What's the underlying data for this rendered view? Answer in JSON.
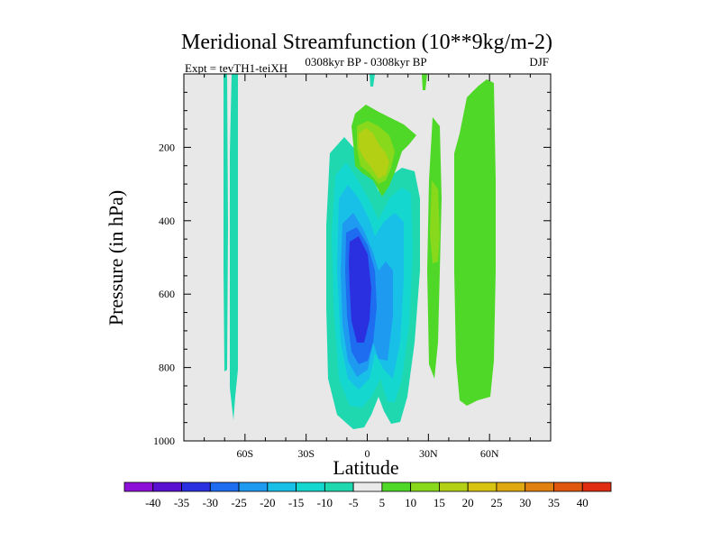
{
  "chart_data": {
    "type": "contour",
    "title": "Meridional Streamfunction (10**9kg/m-2)",
    "subtitle_left": "Expt = tevTH1-teiXH",
    "subtitle_center": "0308kyr BP - 0308kyr BP",
    "subtitle_right": "DJF",
    "xlabel": "Latitude",
    "ylabel": "Pressure (in hPa)",
    "xlim": [
      -90,
      90
    ],
    "ylim": [
      1000,
      0
    ],
    "x_ticks": [
      {
        "value": -60,
        "label": "60S"
      },
      {
        "value": -30,
        "label": "30S"
      },
      {
        "value": 0,
        "label": "0"
      },
      {
        "value": 30,
        "label": "30N"
      },
      {
        "value": 60,
        "label": "60N"
      }
    ],
    "y_ticks": [
      {
        "value": 200,
        "label": "200"
      },
      {
        "value": 400,
        "label": "400"
      },
      {
        "value": 600,
        "label": "600"
      },
      {
        "value": 800,
        "label": "800"
      },
      {
        "value": 1000,
        "label": "1000"
      }
    ],
    "levels": [
      -40,
      -35,
      -30,
      -25,
      -20,
      -15,
      -10,
      -5,
      5,
      10,
      15,
      20,
      25,
      30,
      35,
      40
    ],
    "colorbar_colors": [
      "#8d10d8",
      "#5a10d0",
      "#2a30e0",
      "#1e6cf0",
      "#1e9af0",
      "#18c0e8",
      "#14d8d0",
      "#20d8b0",
      "#eaeaea",
      "#50d828",
      "#88d81c",
      "#b4d014",
      "#d8c410",
      "#e0a810",
      "#e08010",
      "#e05810",
      "#e02c10"
    ],
    "features": [
      {
        "name": "cell-sh-high-lat",
        "lon": [
          -64.5,
          -60
        ],
        "p_top": 0,
        "p_bottom": 940,
        "value": -7
      },
      {
        "name": "cell-sh-high-lat-narrow",
        "lon": [
          -68,
          -66
        ],
        "p_top": 0,
        "p_bottom": 810,
        "value": -7
      },
      {
        "name": "hadley-sh-outer",
        "lat_range": [
          -18,
          25
        ],
        "p_top": 170,
        "p_bottom": 975,
        "value": -12
      },
      {
        "name": "hadley-sh-core",
        "lat_range": [
          -9,
          2
        ],
        "p_top": 420,
        "p_bottom": 780,
        "value": -33
      },
      {
        "name": "upper-positive-cell",
        "lat_range": [
          -5,
          25
        ],
        "p_top": 110,
        "p_bottom": 330,
        "value": 12
      },
      {
        "name": "nh-subtropical-cell",
        "lat_range": [
          31,
          36
        ],
        "p_top": 130,
        "p_bottom": 800,
        "value": 10
      },
      {
        "name": "nh-ferrel-cell",
        "lat_range": [
          43,
          62
        ],
        "p_top": 60,
        "p_bottom": 895,
        "value": 8
      }
    ]
  }
}
